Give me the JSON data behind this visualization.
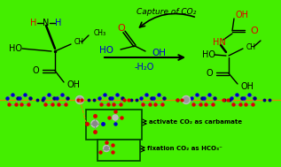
{
  "bg_color": "#44ee00",
  "fig_width": 3.17,
  "fig_height": 1.89,
  "dpi": 100,
  "label1": "activate CO₂ as carbamate",
  "label2": "fixation CO₂ as HCO₃⁻",
  "minus_h2o": "-H₂O",
  "capture_title": "Capture of CO₂"
}
